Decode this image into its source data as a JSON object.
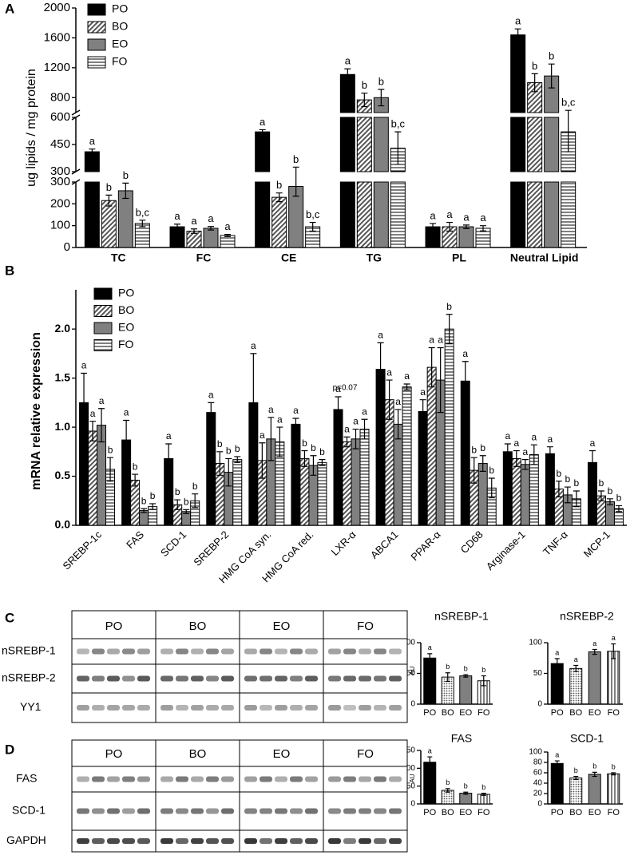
{
  "panels": [
    "A",
    "B",
    "C",
    "D"
  ],
  "chart_data": [
    {
      "type": "bar",
      "y_label": "ug lipids / mg protein",
      "categories": [
        "TC",
        "FC",
        "CE",
        "TG",
        "PL",
        "Neutral Lipid"
      ],
      "y_segments": [
        {
          "ylim": [
            0,
            300
          ],
          "yticks": [
            0,
            100,
            200,
            300
          ]
        },
        {
          "ylim": [
            300,
            600
          ],
          "yticks": [
            300,
            450,
            600
          ]
        },
        {
          "ylim": [
            600,
            2000
          ],
          "yticks": [
            800,
            1200,
            1600,
            2000
          ]
        }
      ],
      "series": [
        {
          "name": "PO",
          "color": "#000000",
          "pattern": "solid",
          "values": [
            410,
            95,
            520,
            1110,
            95,
            1640
          ],
          "errors": [
            15,
            12,
            12,
            75,
            15,
            80
          ],
          "letters": [
            "a",
            "a",
            "a",
            "a",
            "a",
            "a"
          ]
        },
        {
          "name": "BO",
          "color": "#555555",
          "pattern": "diagonal",
          "values": [
            215,
            75,
            230,
            770,
            95,
            1000
          ],
          "errors": [
            25,
            10,
            20,
            90,
            20,
            120
          ],
          "letters": [
            "b",
            "a",
            "b",
            "b",
            "a",
            "b"
          ]
        },
        {
          "name": "EO",
          "color": "#808080",
          "pattern": "solid",
          "values": [
            260,
            88,
            280,
            800,
            95,
            1090
          ],
          "errors": [
            35,
            8,
            45,
            110,
            8,
            160
          ],
          "letters": [
            "b",
            "a",
            "b",
            "b",
            "a",
            "b"
          ]
        },
        {
          "name": "FO",
          "color": "#000000",
          "pattern": "horizontal",
          "values": [
            110,
            55,
            95,
            430,
            88,
            520
          ],
          "errors": [
            15,
            5,
            20,
            90,
            12,
            110
          ],
          "letters": [
            "b,c",
            "a",
            "b,c",
            "b,c",
            "a",
            "b,c"
          ]
        }
      ]
    },
    {
      "type": "bar",
      "y_label": "mRNA relative expression",
      "categories": [
        "SREBP-1c",
        "FAS",
        "SCD-1",
        "SREBP-2",
        "HMG CoA syn.",
        "HMG CoA red.",
        "LXR-α",
        "ABCA1",
        "PPAR-α",
        "CD68",
        "Arginase-1",
        "TNF-α",
        "MCP-1"
      ],
      "ylim": [
        0,
        2.4
      ],
      "yticks": [
        {
          "value": 0,
          "label": "0.0"
        },
        0.5,
        {
          "value": 1,
          "label": "1.0"
        },
        1.5,
        {
          "value": 2,
          "label": "2.0"
        }
      ],
      "annotation": "p=0.07",
      "series": [
        {
          "name": "PO",
          "color": "#000000",
          "pattern": "solid",
          "values": [
            1.25,
            0.87,
            0.68,
            1.15,
            1.25,
            1.03,
            1.18,
            1.59,
            1.16,
            1.47,
            0.75,
            0.73,
            0.64
          ],
          "errors": [
            0.3,
            0.2,
            0.15,
            0.1,
            0.5,
            0.06,
            0.13,
            0.27,
            0.12,
            0.2,
            0.08,
            0.07,
            0.12
          ],
          "letters": [
            "a",
            "a",
            "a",
            "a",
            "a",
            "a",
            "a",
            "a",
            "a",
            "a",
            "a",
            "a",
            "a"
          ]
        },
        {
          "name": "BO",
          "color": "#555555",
          "pattern": "diagonal",
          "values": [
            0.96,
            0.46,
            0.21,
            0.63,
            0.66,
            0.68,
            0.85,
            1.28,
            1.61,
            0.56,
            0.68,
            0.37,
            0.3
          ],
          "errors": [
            0.1,
            0.06,
            0.05,
            0.12,
            0.18,
            0.08,
            0.05,
            0.2,
            0.2,
            0.13,
            0.08,
            0.08,
            0.05
          ],
          "letters": [
            "a",
            "b",
            "b",
            "b",
            "a",
            "b",
            "a",
            "a",
            "a",
            "b",
            "a",
            "b",
            "b"
          ]
        },
        {
          "name": "EO",
          "color": "#808080",
          "pattern": "solid",
          "values": [
            1.02,
            0.15,
            0.14,
            0.54,
            0.88,
            0.61,
            0.88,
            1.03,
            1.48,
            0.63,
            0.62,
            0.31,
            0.24
          ],
          "errors": [
            0.17,
            0.02,
            0.02,
            0.14,
            0.22,
            0.1,
            0.1,
            0.15,
            0.33,
            0.08,
            0.05,
            0.08,
            0.03
          ],
          "letters": [
            "a",
            "b",
            "b",
            "b",
            "a",
            "b",
            "a",
            "a",
            "a",
            "b",
            "a",
            "b",
            "b"
          ]
        },
        {
          "name": "FO",
          "color": "#000000",
          "pattern": "horizontal",
          "values": [
            0.57,
            0.19,
            0.25,
            0.67,
            0.85,
            0.64,
            0.98,
            1.41,
            2.0,
            0.38,
            0.72,
            0.27,
            0.17
          ],
          "errors": [
            0.12,
            0.03,
            0.07,
            0.03,
            0.15,
            0.03,
            0.1,
            0.03,
            0.15,
            0.1,
            0.1,
            0.08,
            0.03
          ],
          "letters": [
            "b",
            "b",
            "b",
            "b",
            "a",
            "b",
            "a",
            "a",
            "b",
            "b",
            "a",
            "b",
            "b"
          ]
        }
      ]
    },
    {
      "type": "bar",
      "title": "nSREBP-1",
      "y_label": "AU",
      "categories": [
        "PO",
        "BO",
        "EO",
        "FO"
      ],
      "ylim": [
        0,
        100
      ],
      "yticks": [
        0,
        50,
        100
      ],
      "values": [
        75,
        44,
        46,
        38
      ],
      "errors": [
        7,
        7,
        2,
        8
      ],
      "letters": [
        "a",
        "b",
        "b",
        "b"
      ],
      "colors": [
        "#000000",
        "#555555",
        "#808080",
        "#000000"
      ],
      "patterns": [
        "solid",
        "dots",
        "solid",
        "vertical"
      ]
    },
    {
      "type": "bar",
      "title": "nSREBP-2",
      "categories": [
        "PO",
        "BO",
        "EO",
        "FO"
      ],
      "ylim": [
        0,
        100
      ],
      "yticks": [
        0,
        50,
        100
      ],
      "values": [
        66,
        58,
        85,
        86
      ],
      "errors": [
        8,
        5,
        4,
        12
      ],
      "letters": [
        "a",
        "a",
        "a",
        "a"
      ],
      "colors": [
        "#000000",
        "#555555",
        "#808080",
        "#000000"
      ],
      "patterns": [
        "solid",
        "dots",
        "solid",
        "vertical"
      ]
    },
    {
      "type": "bar",
      "title": "FAS",
      "y_label": "AU",
      "categories": [
        "PO",
        "BO",
        "EO",
        "FO"
      ],
      "ylim": [
        0,
        150
      ],
      "yticks": [
        0,
        50,
        100,
        150
      ],
      "values": [
        117,
        38,
        30,
        27
      ],
      "errors": [
        15,
        5,
        3,
        3
      ],
      "letters": [
        "a",
        "b",
        "b",
        "b"
      ],
      "colors": [
        "#000000",
        "#555555",
        "#808080",
        "#000000"
      ],
      "patterns": [
        "solid",
        "dots",
        "solid",
        "vertical"
      ]
    },
    {
      "type": "bar",
      "title": "SCD-1",
      "categories": [
        "PO",
        "BO",
        "EO",
        "FO"
      ],
      "ylim": [
        0,
        100
      ],
      "yticks": [
        0,
        20,
        40,
        60,
        80,
        100
      ],
      "values": [
        78,
        50,
        57,
        58
      ],
      "errors": [
        5,
        3,
        4,
        2
      ],
      "letters": [
        "a",
        "b",
        "b",
        "b"
      ],
      "colors": [
        "#000000",
        "#555555",
        "#808080",
        "#000000"
      ],
      "patterns": [
        "solid",
        "dots",
        "solid",
        "vertical"
      ]
    }
  ],
  "blots": [
    {
      "lanes": [
        "PO",
        "BO",
        "EO",
        "FO"
      ],
      "rows": [
        "nSREBP-1",
        "nSREBP-2",
        "YY1"
      ]
    },
    {
      "lanes": [
        "PO",
        "BO",
        "EO",
        "FO"
      ],
      "rows": [
        "FAS",
        "SCD-1",
        "GAPDH"
      ]
    }
  ]
}
